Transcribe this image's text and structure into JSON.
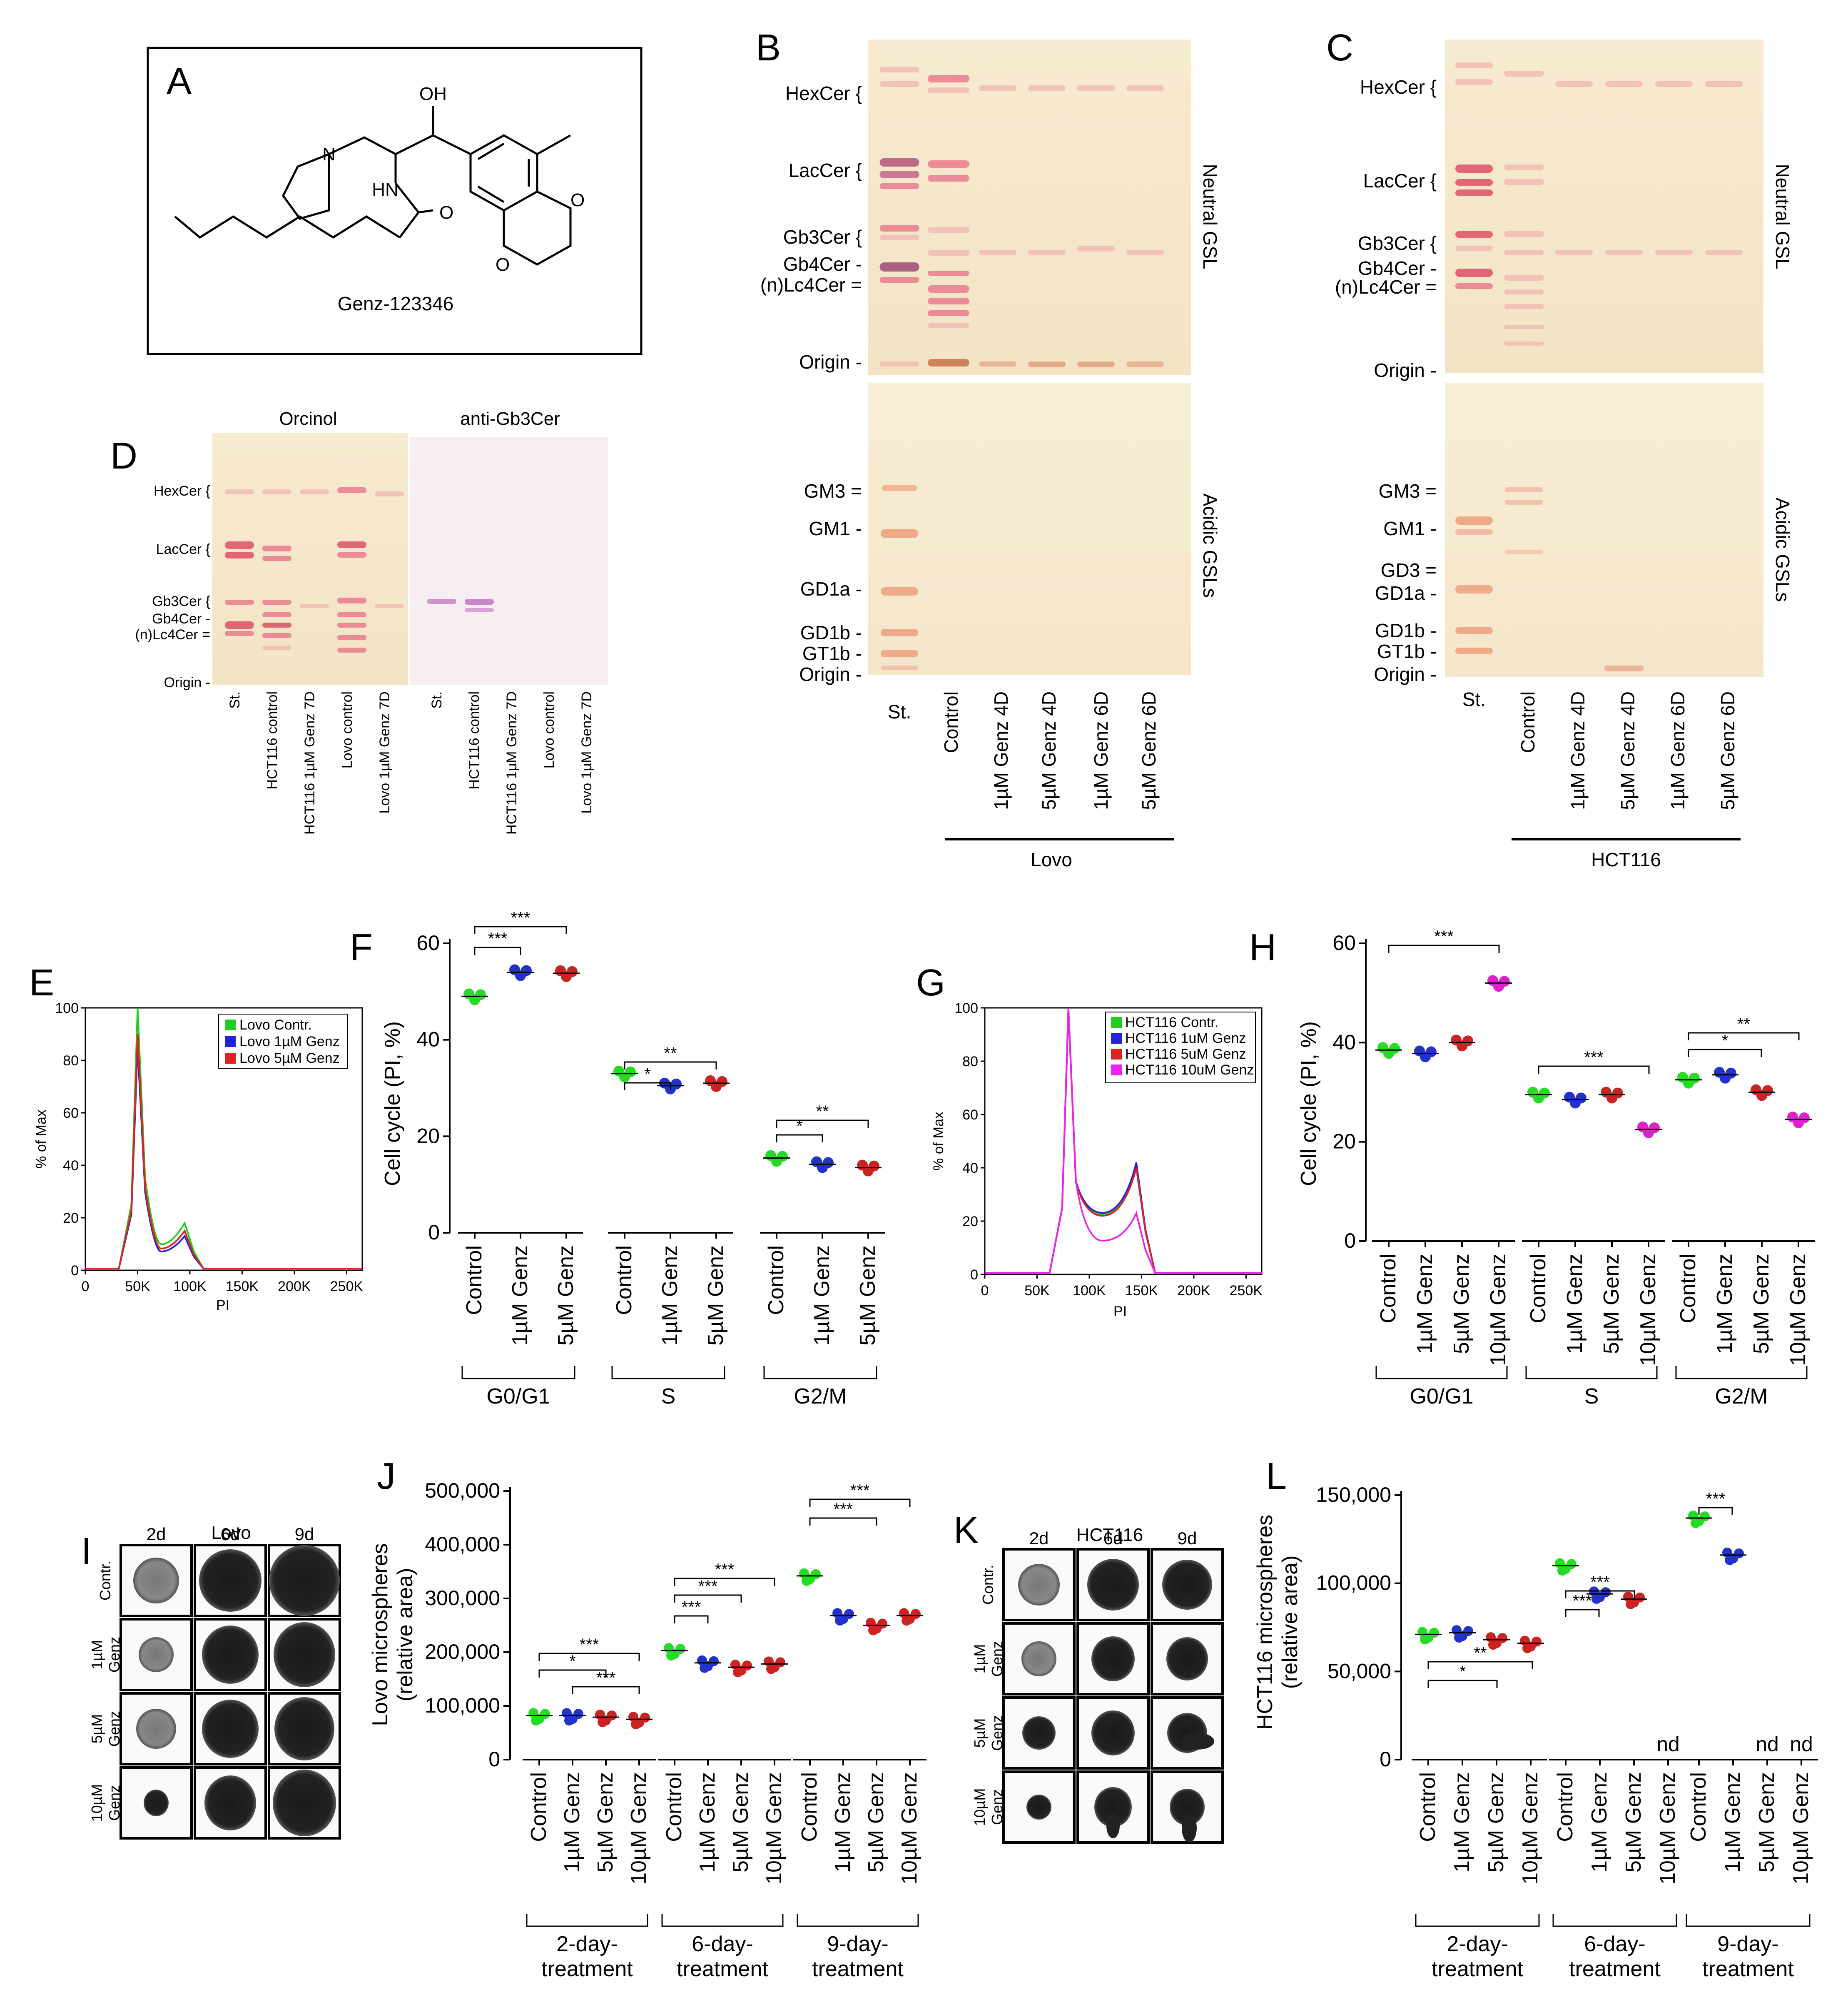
{
  "panels": {
    "A": "A",
    "B": "B",
    "C": "C",
    "D": "D",
    "E": "E",
    "F": "F",
    "G": "G",
    "H": "H",
    "I": "I",
    "J": "J",
    "K": "K",
    "L": "L"
  },
  "structure": {
    "name": "Genz-123346",
    "oh": "OH",
    "hn": "HN",
    "n": "N"
  },
  "tlc": {
    "neutral_label": "Neutral GSL",
    "acidic_label": "Acidic GSLs",
    "neutral_bands": [
      "HexCer {",
      "LacCer {",
      "Gb3Cer {",
      "Gb4Cer -",
      "(n)Lc4Cer =",
      "Origin -"
    ],
    "acidic_bands_B": [
      "GM3 =",
      "GM1 -",
      "GD1a -",
      "GD1b -",
      "GT1b -",
      "Origin -"
    ],
    "acidic_bands_C": [
      "GM3 =",
      "GM1 -",
      "GD3 =",
      "GD1a -",
      "GD1b -",
      "GT1b -",
      "Origin -"
    ],
    "lanes": [
      "St.",
      "Control",
      "1µM Genz 4D",
      "5µM Genz 4D",
      "1µM Genz 6D",
      "5µM Genz 6D"
    ],
    "cell_B": "Lovo",
    "cell_C": "HCT116"
  },
  "panelD": {
    "title_left": "Orcinol",
    "title_right": "anti-Gb3Cer",
    "bands": [
      "HexCer {",
      "LacCer {",
      "Gb3Cer {",
      "Gb4Cer -",
      "(n)Lc4Cer =",
      "Origin -"
    ],
    "lanes": [
      "St.",
      "HCT116 control",
      "HCT116 1µM Genz 7D",
      "Lovo control",
      "Lovo 1µM Genz 7D"
    ]
  },
  "chart_data": [
    {
      "panel": "E",
      "type": "line",
      "title": "",
      "xlabel": "PI",
      "ylabel": "% of Max",
      "xticks": [
        "0",
        "50K",
        "100K",
        "150K",
        "200K",
        "250K"
      ],
      "yticks": [
        "0",
        "20",
        "40",
        "60",
        "80",
        "100"
      ],
      "legend": [
        "Lovo Contr.",
        "Lovo 1µM Genz",
        "Lovo 5µM Genz"
      ],
      "series": [
        {
          "name": "Lovo Contr.",
          "color": "#22cc22",
          "peaks": [
            {
              "x": 50,
              "y": 100
            },
            {
              "x": 95,
              "y": 18
            }
          ]
        },
        {
          "name": "Lovo 1µM Genz",
          "color": "#2222dd",
          "peaks": [
            {
              "x": 50,
              "y": 85
            },
            {
              "x": 95,
              "y": 13
            }
          ]
        },
        {
          "name": "Lovo 5µM Genz",
          "color": "#dd2222",
          "peaks": [
            {
              "x": 50,
              "y": 90
            },
            {
              "x": 95,
              "y": 15
            }
          ]
        }
      ]
    },
    {
      "panel": "F",
      "type": "scatter",
      "ylabel": "Cell cycle (PI, %)",
      "ylim": [
        0,
        60
      ],
      "yticks": [
        "0",
        "20",
        "40",
        "60"
      ],
      "groups": [
        "G0/G1",
        "S",
        "G2/M"
      ],
      "categories": [
        "Control",
        "1µM Genz",
        "5µM Genz"
      ],
      "series": [
        {
          "group": "G0/G1",
          "values": [
            49,
            54,
            53.8
          ]
        },
        {
          "group": "S",
          "values": [
            33,
            30.5,
            31
          ]
        },
        {
          "group": "G2/M",
          "values": [
            15.5,
            14.2,
            13.5
          ]
        }
      ],
      "significance": [
        "***",
        "***",
        "*",
        "**",
        "*",
        "**"
      ]
    },
    {
      "panel": "G",
      "type": "line",
      "xlabel": "PI",
      "ylabel": "% of Max",
      "xticks": [
        "0",
        "50K",
        "100K",
        "150K",
        "200K",
        "250K"
      ],
      "yticks": [
        "0",
        "20",
        "40",
        "60",
        "80",
        "100"
      ],
      "legend": [
        "HCT116  Contr.",
        "HCT116  1uM Genz",
        "HCT116  5uM Genz",
        "HCT116  10uM Genz"
      ],
      "series": [
        {
          "name": "HCT116 Contr.",
          "color": "#22cc22",
          "peaks": [
            {
              "x": 80,
              "y": 100
            },
            {
              "x": 145,
              "y": 41
            }
          ]
        },
        {
          "name": "HCT116 1uM Genz",
          "color": "#2222dd",
          "peaks": [
            {
              "x": 80,
              "y": 100
            },
            {
              "x": 145,
              "y": 42
            }
          ]
        },
        {
          "name": "HCT116 5uM Genz",
          "color": "#dd2222",
          "peaks": [
            {
              "x": 80,
              "y": 99
            },
            {
              "x": 145,
              "y": 40
            }
          ]
        },
        {
          "name": "HCT116 10uM Genz",
          "color": "#ee22ee",
          "peaks": [
            {
              "x": 80,
              "y": 100
            },
            {
              "x": 145,
              "y": 23
            }
          ]
        }
      ]
    },
    {
      "panel": "H",
      "type": "scatter",
      "ylabel": "Cell cycle (PI, %)",
      "ylim": [
        0,
        60
      ],
      "yticks": [
        "0",
        "20",
        "40",
        "60"
      ],
      "groups": [
        "G0/G1",
        "S",
        "G2/M"
      ],
      "categories": [
        "Control",
        "1µM Genz",
        "5µM Genz",
        "10µM Genz"
      ],
      "series": [
        {
          "group": "G0/G1",
          "values": [
            38.5,
            37.8,
            40,
            52
          ]
        },
        {
          "group": "S",
          "values": [
            29.5,
            28.5,
            29.5,
            22.5
          ]
        },
        {
          "group": "G2/M",
          "values": [
            32.5,
            33.5,
            30,
            24.5
          ]
        }
      ],
      "significance": [
        "***",
        "***",
        "*",
        "**"
      ]
    },
    {
      "panel": "J",
      "type": "scatter",
      "ylabel": "Lovo microspheres\n(relative area)",
      "ylim": [
        0,
        500000
      ],
      "yticks": [
        "0",
        "100,000",
        "200,000",
        "300,000",
        "400,000",
        "500,000"
      ],
      "groups": [
        "2-day-\ntreatment",
        "6-day-\ntreatment",
        "9-day-\ntreatment"
      ],
      "categories": [
        "Control",
        "1µM Genz",
        "5µM Genz",
        "10µM Genz"
      ],
      "series": [
        {
          "group": "2-day",
          "values": [
            82000,
            82000,
            79000,
            75000
          ]
        },
        {
          "group": "6-day",
          "values": [
            203000,
            180000,
            172000,
            178000
          ]
        },
        {
          "group": "9-day",
          "values": [
            342000,
            268000,
            250000,
            268000
          ]
        }
      ],
      "significance": [
        "***",
        "*",
        "***",
        "***",
        "***",
        "***",
        "***",
        "***"
      ]
    },
    {
      "panel": "L",
      "type": "scatter",
      "ylabel": "HCT116 microspheres\n(relative area)",
      "ylim": [
        0,
        150000
      ],
      "yticks": [
        "0",
        "50,000",
        "100,000",
        "150,000"
      ],
      "groups": [
        "2-day-\ntreatment",
        "6-day-\ntreatment",
        "9-day-\ntreatment"
      ],
      "categories": [
        "Control",
        "1µM Genz",
        "5µM Genz",
        "10µM Genz"
      ],
      "series": [
        {
          "group": "2-day",
          "values": [
            71000,
            72000,
            68000,
            66000
          ]
        },
        {
          "group": "6-day",
          "values": [
            110000,
            94000,
            91000,
            null
          ]
        },
        {
          "group": "9-day",
          "values": [
            137000,
            116000,
            null,
            null
          ]
        }
      ],
      "na_label": "nd",
      "significance": [
        "**",
        "*",
        "***",
        "***",
        "***"
      ]
    }
  ],
  "panelI": {
    "title": "Lovo",
    "cols": [
      "2d",
      "6d",
      "9d"
    ],
    "rows": [
      "Contr.",
      "1µM\nGenz",
      "5µM\nGenz",
      "10µM\nGenz"
    ]
  },
  "panelK": {
    "title": "HCT116",
    "cols": [
      "2d",
      "6d",
      "9d"
    ],
    "rows": [
      "Contr.",
      "1µM\nGenz",
      "5µM\nGenz",
      "10µM\nGenz"
    ]
  }
}
